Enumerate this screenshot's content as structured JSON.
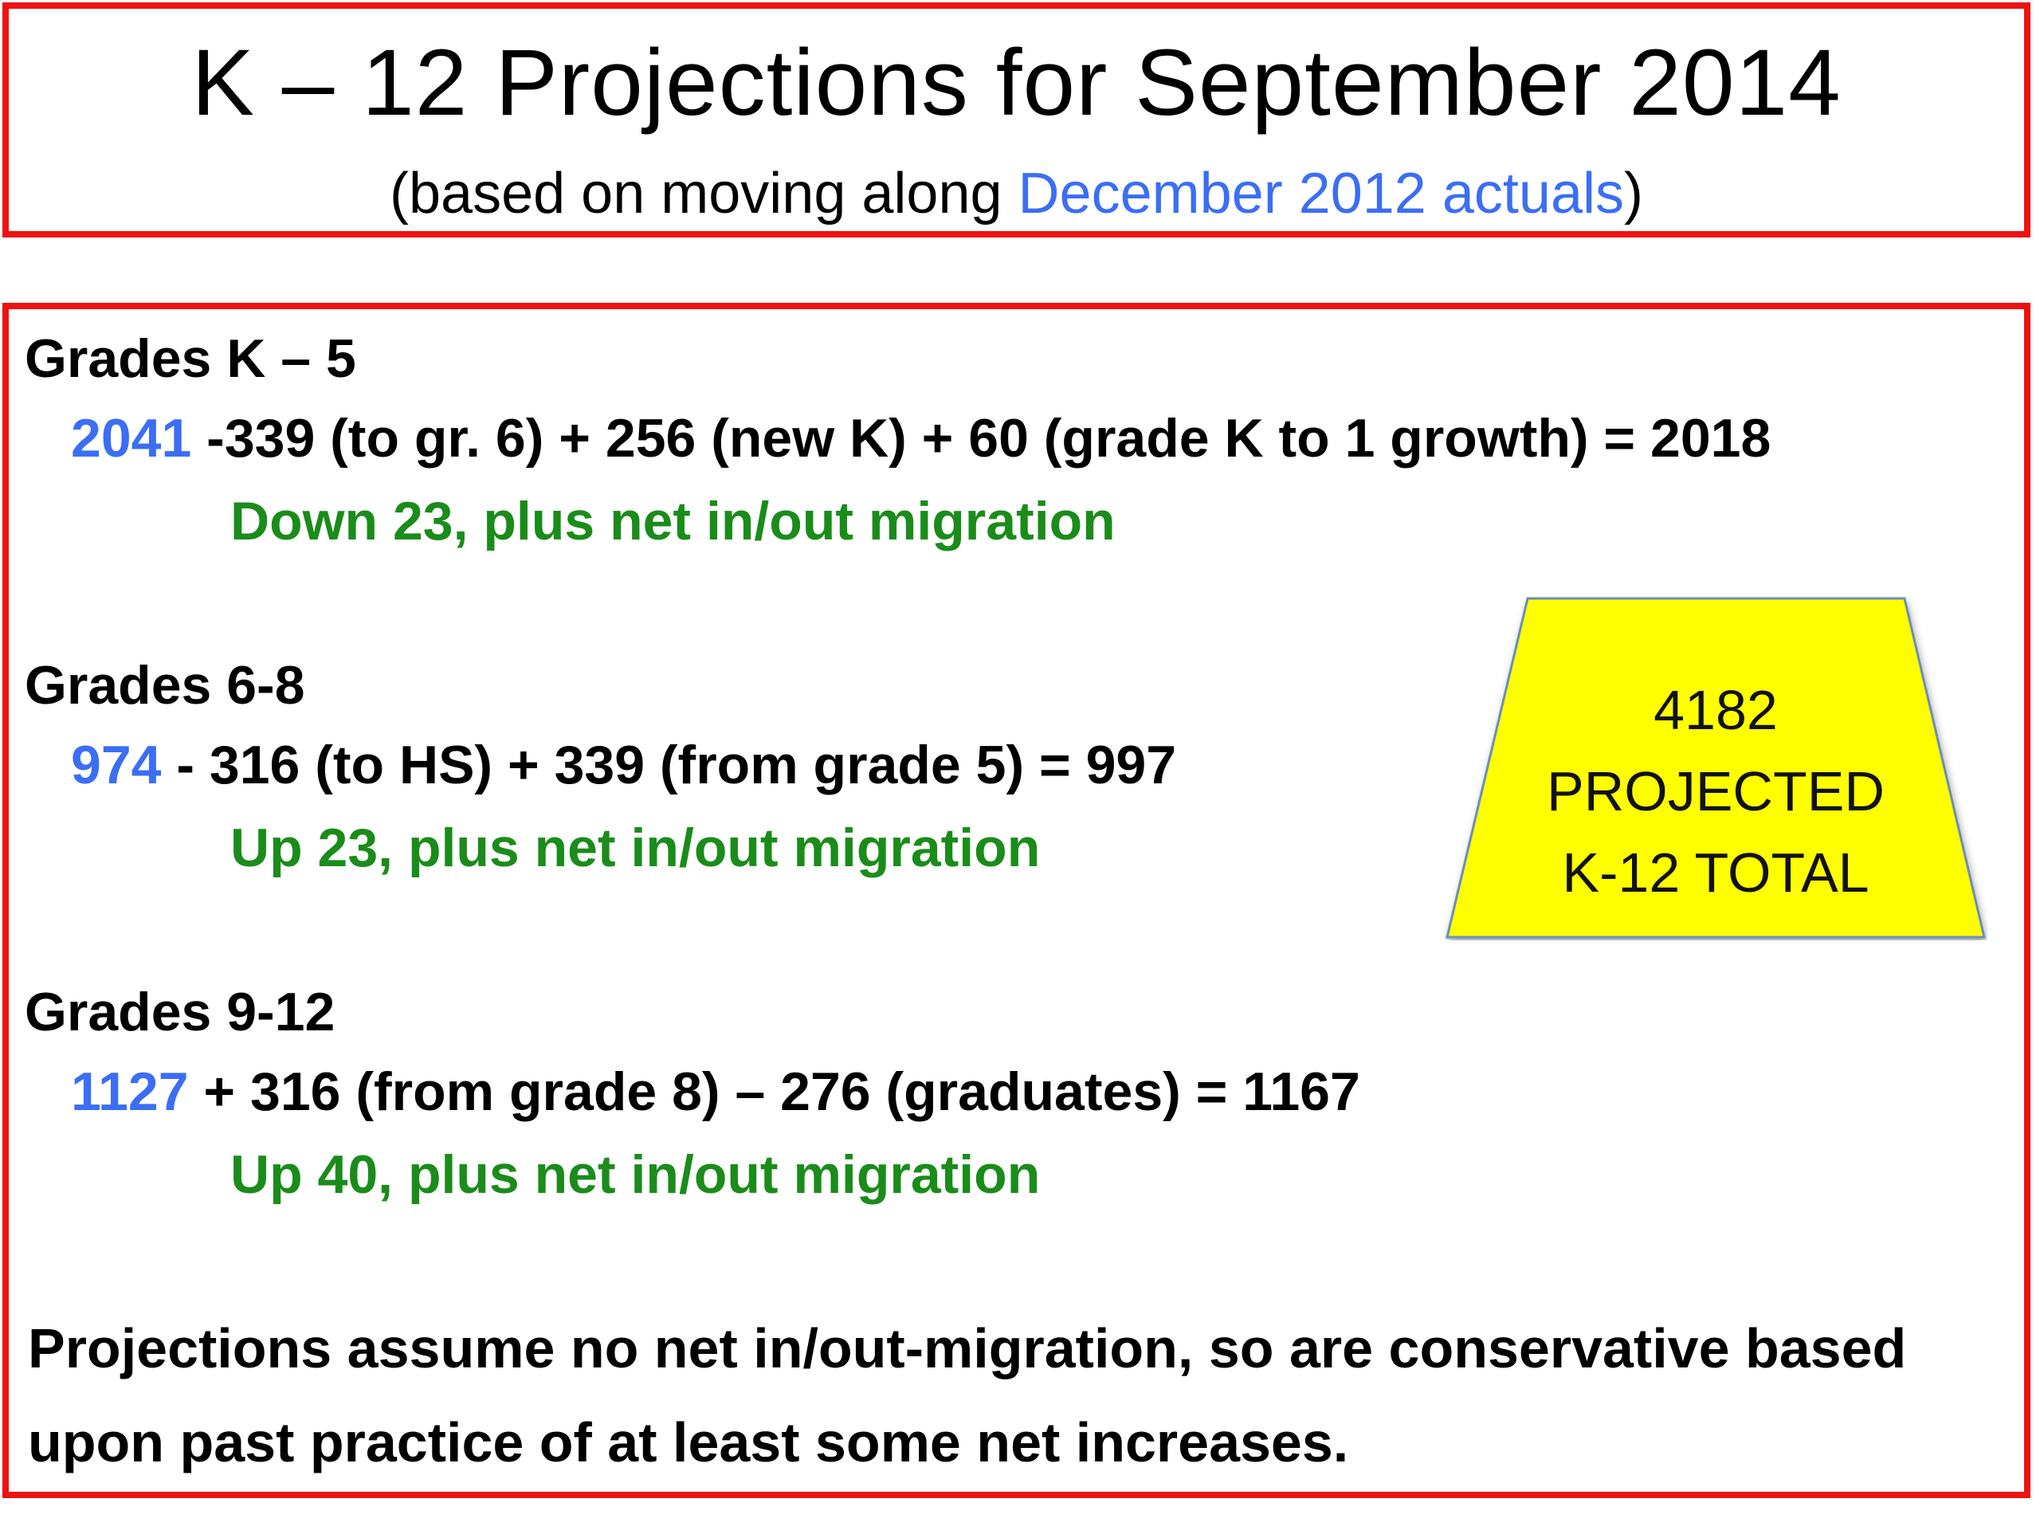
{
  "header": {
    "title": "K – 12 Projections for September 2014",
    "subtitle_prefix": "(based on moving along ",
    "subtitle_highlight": "December 2012 actuals",
    "subtitle_suffix": ")"
  },
  "sections": [
    {
      "heading": "Grades K – 5",
      "start_value": "2041",
      "equation": " -339 (to gr. 6) + 256 (new K) + 60 (grade K to 1 growth) = 2018",
      "note": "Down 23, plus net in/out migration"
    },
    {
      "heading": "Grades 6-8",
      "start_value": "974",
      "equation": " - 316 (to HS) + 339 (from grade 5) = 997",
      "note": "Up 23, plus net in/out migration"
    },
    {
      "heading": "Grades 9-12",
      "start_value": "1127",
      "equation": " + 316 (from grade 8) – 276 (graduates) = 1167",
      "note": "Up 40, plus net in/out migration"
    }
  ],
  "callout": {
    "line1": "4182",
    "line2": "PROJECTED",
    "line3": "K-12 TOTAL",
    "fill_color": "#ffff00",
    "border_color": "#6b8fb5"
  },
  "footnote": "Projections assume no net in/out-migration, so are conservative based upon past practice of at least some net increases.",
  "colors": {
    "border": "#ee1111",
    "highlight_blue": "#3b6ef5",
    "note_green": "#1a8c1a"
  }
}
